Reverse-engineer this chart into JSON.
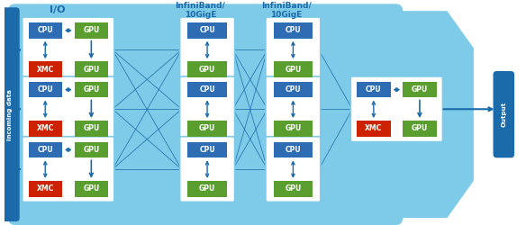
{
  "bg_light_blue": "#7DCBE8",
  "bg_dark_blue": "#1B6BAA",
  "cpu_color": "#2E6DB4",
  "gpu_color": "#5A9E2F",
  "xmc_color": "#CC2200",
  "white": "#FFFFFF",
  "arrow_color": "#1B6BAA",
  "text_white": "#FFFFFF",
  "title_color": "#1B6BAA",
  "io_label": "I/O",
  "incoming_label": "Incoming data",
  "output_label": "Output",
  "infiniband_label1": "InfiniBand/\n10GigE",
  "infiniband_label2": "InfiniBand/\n10GigE",
  "figsize": [
    5.84,
    2.5
  ],
  "dpi": 100
}
